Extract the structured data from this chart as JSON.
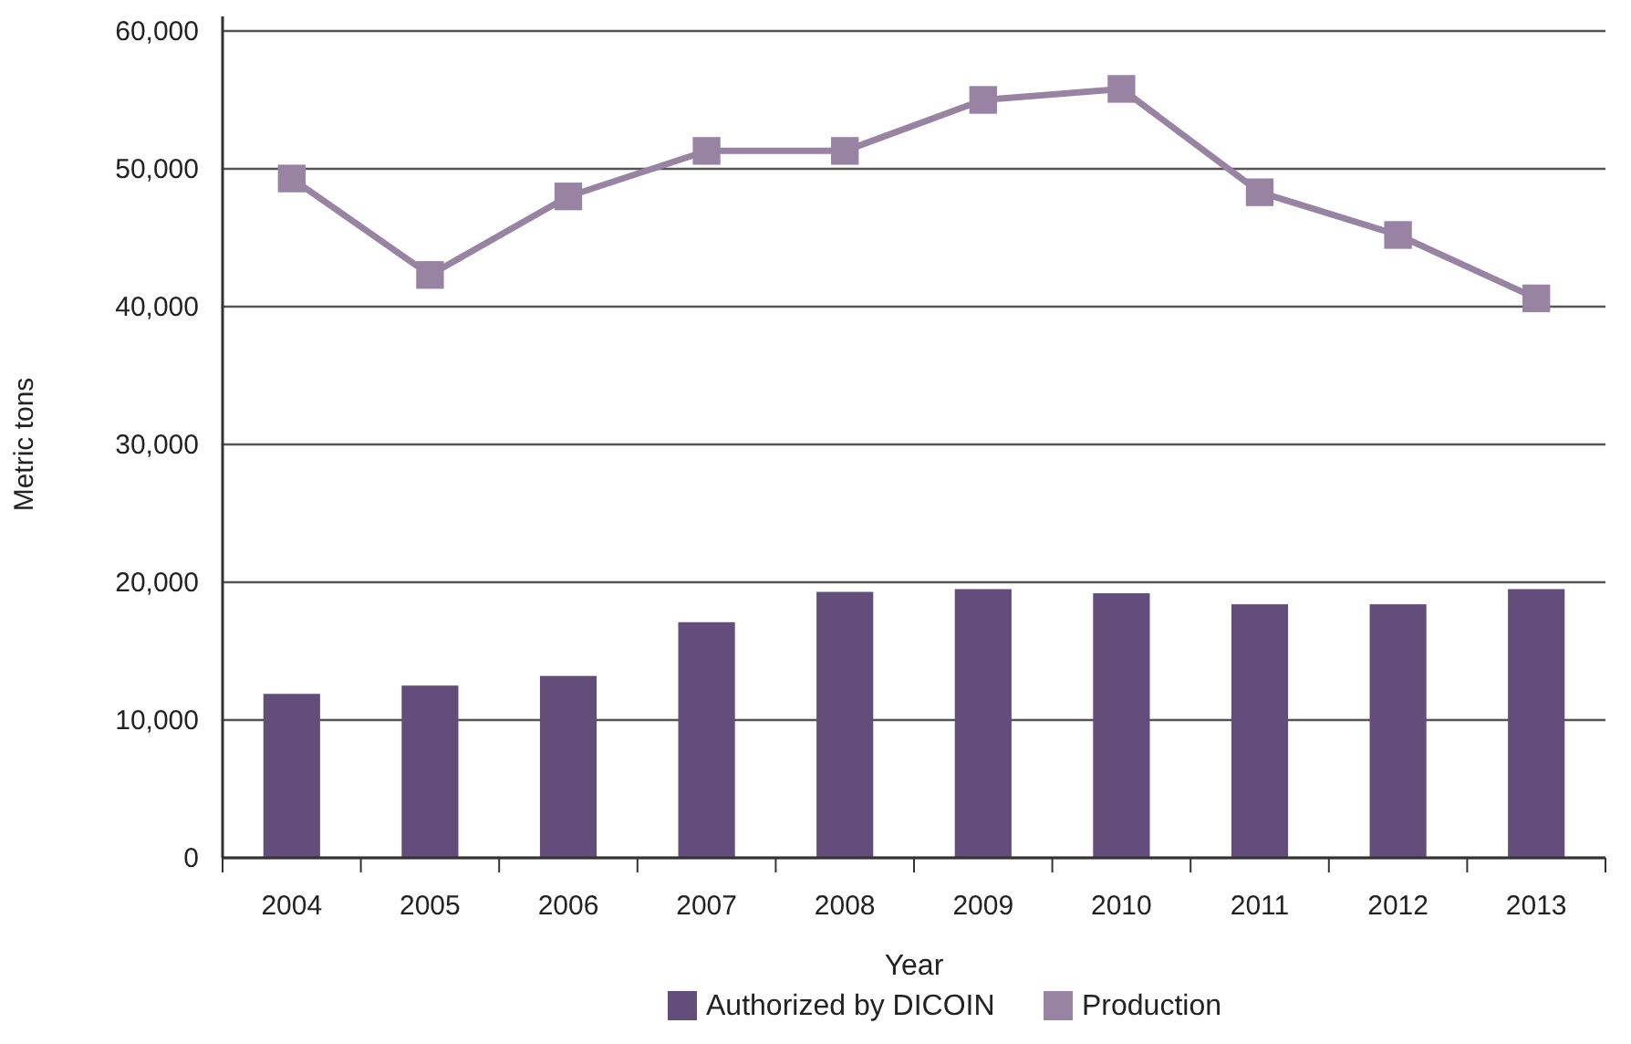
{
  "chart_data": {
    "type": "bar",
    "xlabel": "Year",
    "ylabel": "Metric tons",
    "categories": [
      "2004",
      "2005",
      "2006",
      "2007",
      "2008",
      "2009",
      "2010",
      "2011",
      "2012",
      "2013"
    ],
    "series": [
      {
        "name": "Authorized by DICOIN",
        "color": "#634d7a",
        "values": [
          11900,
          12500,
          13200,
          17100,
          19300,
          19500,
          19200,
          18400,
          18400,
          19500
        ]
      },
      {
        "name": "Production",
        "type": "line",
        "color": "#9883a3",
        "marker": "square",
        "values": [
          49300,
          42300,
          48000,
          51300,
          51300,
          55000,
          55800,
          48300,
          45200,
          40600
        ]
      }
    ],
    "ylim": [
      0,
      60000
    ],
    "yticks": [
      {
        "value": 0,
        "label": "0"
      },
      {
        "value": 10000,
        "label": "10,000"
      },
      {
        "value": 20000,
        "label": "20,000"
      },
      {
        "value": 30000,
        "label": "30,000"
      },
      {
        "value": 40000,
        "label": "40,000"
      },
      {
        "value": 50000,
        "label": "50,000"
      },
      {
        "value": 60000,
        "label": "60,000"
      }
    ],
    "grid": "y",
    "legend": "bottom"
  }
}
